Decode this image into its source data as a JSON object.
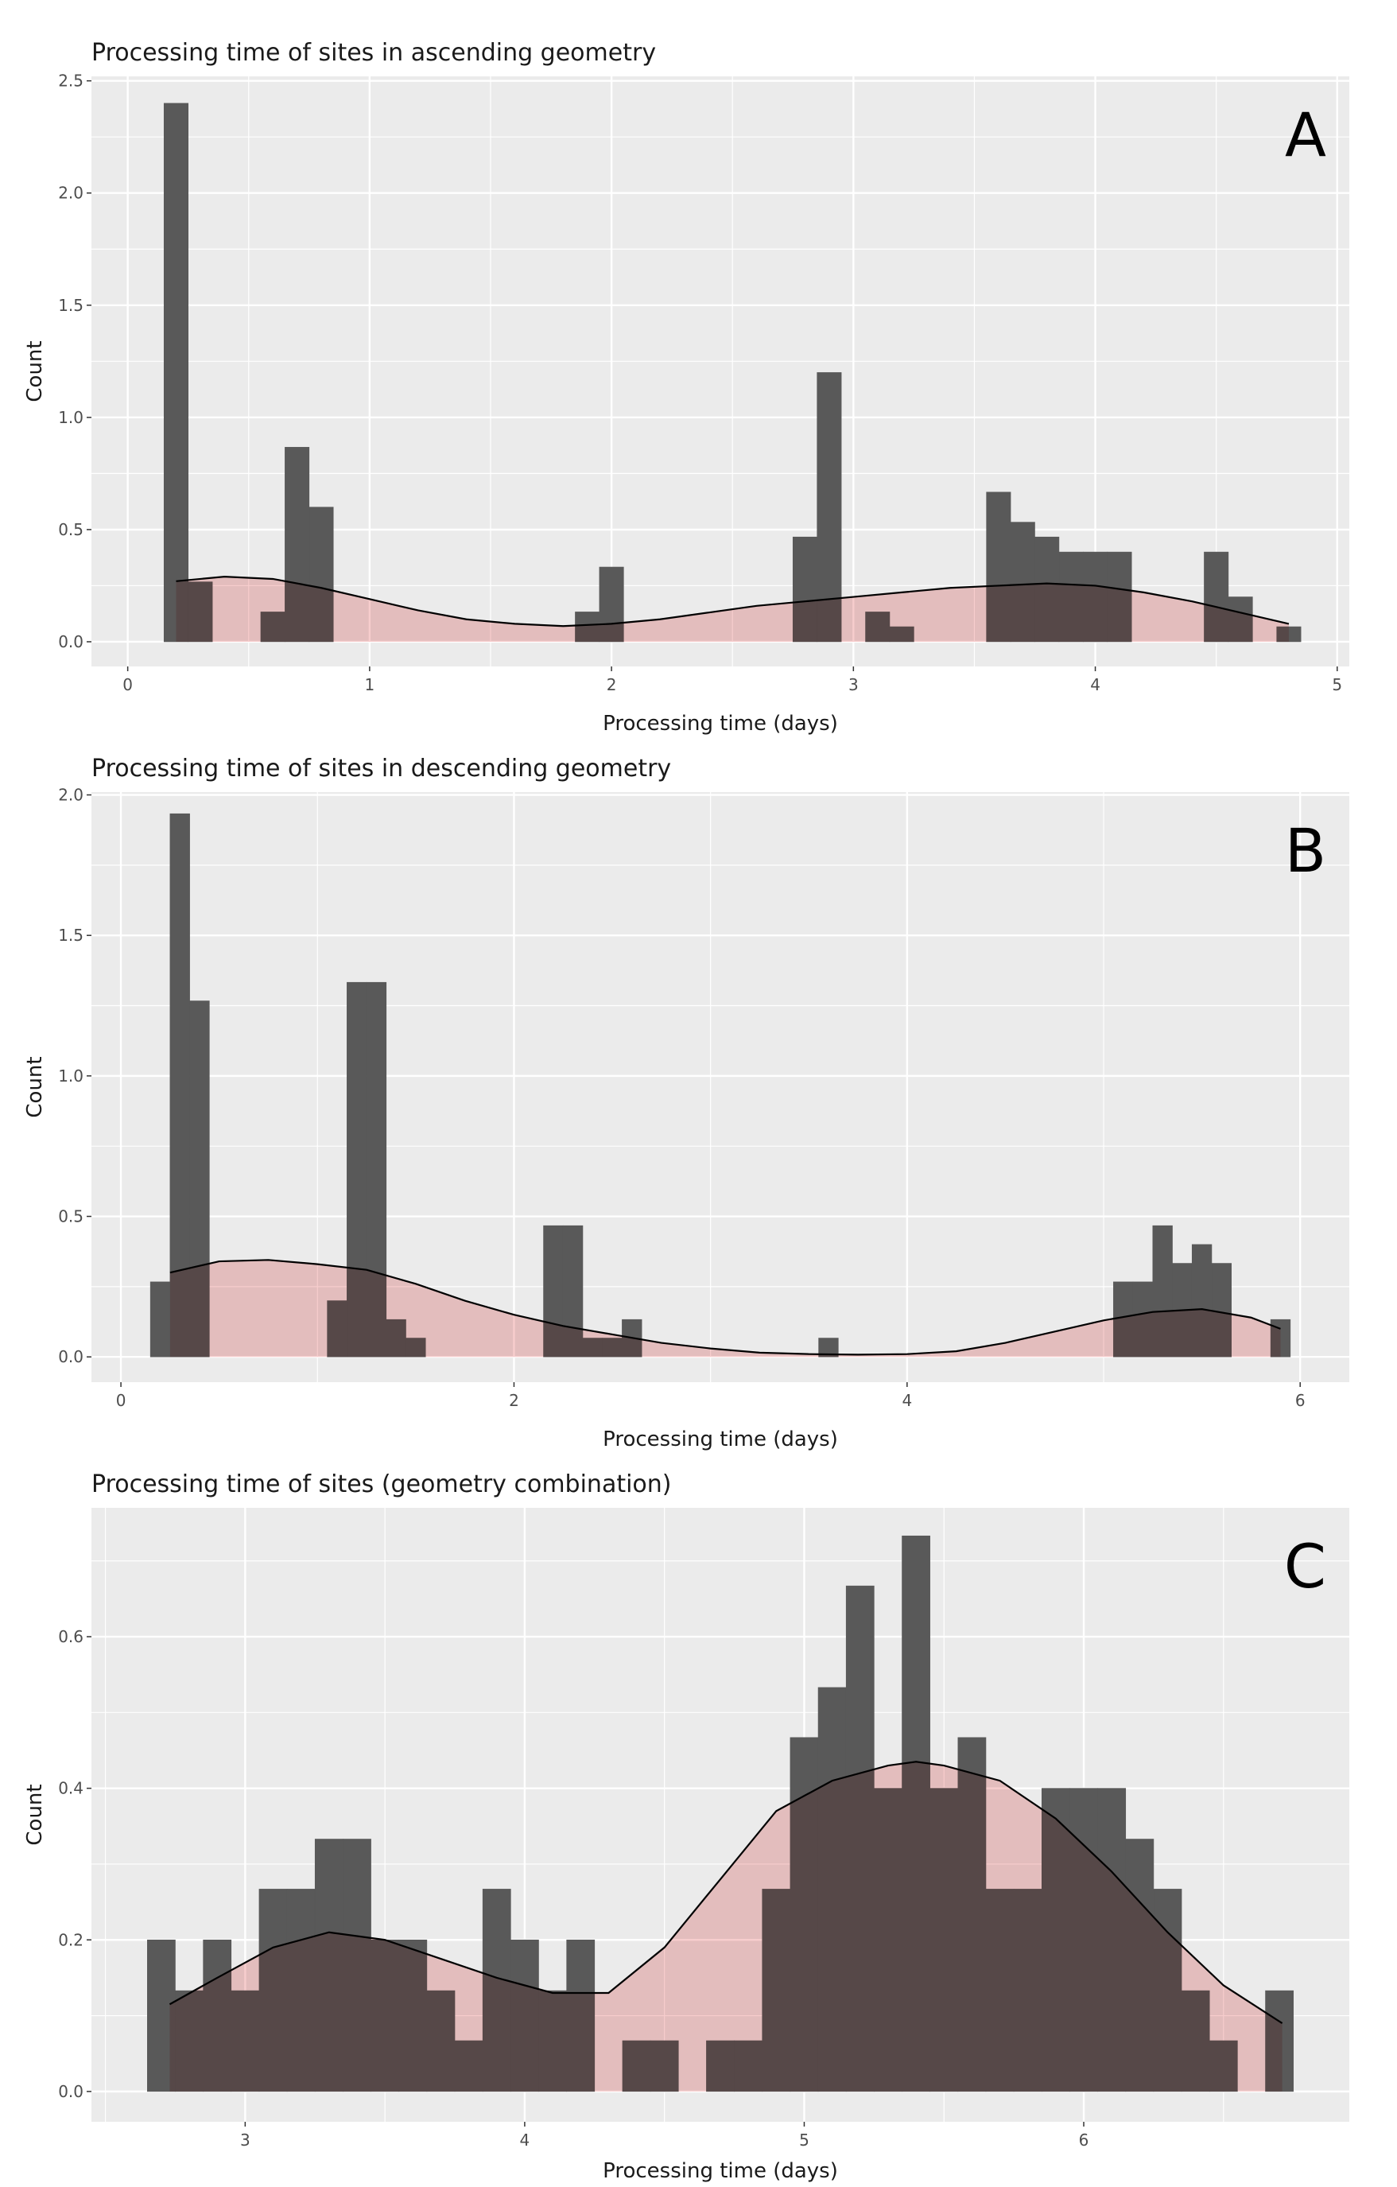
{
  "colors": {
    "panel_bg": "#ebebeb",
    "grid": "#ffffff",
    "bar": "#595959",
    "density_fill": "#f7caca",
    "density_line": "#000000"
  },
  "chart_data": [
    {
      "type": "bar",
      "panel_label": "A",
      "title": "Processing time of sites in ascending geometry",
      "xlabel": "Processing time (days)",
      "ylabel": "Count",
      "xlim": [
        -0.15,
        5.05
      ],
      "ylim": [
        -0.11,
        2.52
      ],
      "xticks": [
        0,
        1,
        2,
        3,
        4,
        5
      ],
      "xtick_labels": [
        "0",
        "1",
        "2",
        "3",
        "4",
        "5"
      ],
      "yticks": [
        0,
        0.5,
        1,
        1.5,
        2,
        2.5
      ],
      "ytick_labels": [
        "0.0",
        "0.5",
        "1.0",
        "1.5",
        "2.0",
        "2.5"
      ],
      "grid": true,
      "bin_width": 0.1,
      "bins_start": [
        0.15,
        0.25,
        0.55,
        0.65,
        0.75,
        1.85,
        1.95,
        2.75,
        2.85,
        3.05,
        3.15,
        3.55,
        3.65,
        3.75,
        3.85,
        3.95,
        4.05,
        4.45,
        4.55,
        4.75
      ],
      "values": [
        2.4,
        0.267,
        0.133,
        0.867,
        0.6,
        0.133,
        0.333,
        0.467,
        1.2,
        0.133,
        0.067,
        0.667,
        0.533,
        0.467,
        0.4,
        0.4,
        0.4,
        0.4,
        0.2,
        0.067
      ],
      "density": {
        "x": [
          0.2,
          0.4,
          0.6,
          0.8,
          1.0,
          1.2,
          1.4,
          1.6,
          1.8,
          2.0,
          2.2,
          2.4,
          2.6,
          2.8,
          3.0,
          3.2,
          3.4,
          3.6,
          3.8,
          4.0,
          4.2,
          4.4,
          4.6,
          4.8
        ],
        "y": [
          0.27,
          0.29,
          0.28,
          0.24,
          0.19,
          0.14,
          0.1,
          0.08,
          0.07,
          0.08,
          0.1,
          0.13,
          0.16,
          0.18,
          0.2,
          0.22,
          0.24,
          0.25,
          0.26,
          0.25,
          0.22,
          0.18,
          0.13,
          0.08
        ]
      }
    },
    {
      "type": "bar",
      "panel_label": "B",
      "title": "Processing time of sites in descending geometry",
      "xlabel": "Processing time (days)",
      "ylabel": "Count",
      "xlim": [
        -0.15,
        6.25
      ],
      "ylim": [
        -0.09,
        2.01
      ],
      "xticks": [
        0,
        2,
        4,
        6
      ],
      "xtick_labels": [
        "0",
        "2",
        "4",
        "6"
      ],
      "yticks": [
        0,
        0.5,
        1,
        1.5,
        2
      ],
      "ytick_labels": [
        "0.0",
        "0.5",
        "1.0",
        "1.5",
        "2.0"
      ],
      "grid": true,
      "bin_width": 0.1,
      "bins_start": [
        0.15,
        0.25,
        0.35,
        1.05,
        1.15,
        1.25,
        1.35,
        1.45,
        2.15,
        2.25,
        2.35,
        2.45,
        2.55,
        3.55,
        5.05,
        5.15,
        5.25,
        5.35,
        5.45,
        5.55,
        5.85
      ],
      "values": [
        0.267,
        1.933,
        1.267,
        0.2,
        1.333,
        1.333,
        0.133,
        0.067,
        0.467,
        0.467,
        0.067,
        0.067,
        0.133,
        0.067,
        0.267,
        0.267,
        0.467,
        0.333,
        0.4,
        0.333,
        0.133
      ],
      "density": {
        "x": [
          0.25,
          0.5,
          0.75,
          1.0,
          1.25,
          1.5,
          1.75,
          2.0,
          2.25,
          2.5,
          2.75,
          3.0,
          3.25,
          3.5,
          3.75,
          4.0,
          4.25,
          4.5,
          4.75,
          5.0,
          5.25,
          5.5,
          5.75,
          5.9
        ],
        "y": [
          0.3,
          0.34,
          0.345,
          0.33,
          0.31,
          0.26,
          0.2,
          0.15,
          0.11,
          0.08,
          0.05,
          0.03,
          0.015,
          0.01,
          0.008,
          0.01,
          0.02,
          0.05,
          0.09,
          0.13,
          0.16,
          0.17,
          0.14,
          0.1
        ]
      }
    },
    {
      "type": "bar",
      "panel_label": "C",
      "title": "Processing time of sites (geometry combination)",
      "xlabel": "Processing time (days)",
      "ylabel": "Count",
      "xlim": [
        2.45,
        6.95
      ],
      "ylim": [
        -0.04,
        0.77
      ],
      "xticks": [
        3,
        4,
        5,
        6
      ],
      "xtick_labels": [
        "3",
        "4",
        "5",
        "6"
      ],
      "yticks": [
        0,
        0.2,
        0.4,
        0.6
      ],
      "ytick_labels": [
        "0.0",
        "0.2",
        "0.4",
        "0.6"
      ],
      "grid": true,
      "bin_width": 0.1,
      "bins_start": [
        2.65,
        2.75,
        2.85,
        2.95,
        3.05,
        3.15,
        3.25,
        3.35,
        3.45,
        3.55,
        3.65,
        3.75,
        3.85,
        3.95,
        4.05,
        4.15,
        4.25,
        4.35,
        4.45,
        4.55,
        4.65,
        4.75,
        4.85,
        4.95,
        5.05,
        5.15,
        5.25,
        5.35,
        5.45,
        5.55,
        5.65,
        5.75,
        5.85,
        5.95,
        6.05,
        6.15,
        6.25,
        6.35,
        6.45,
        6.55,
        6.65
      ],
      "values": [
        0.2,
        0.133,
        0.2,
        0.133,
        0.267,
        0.267,
        0.333,
        0.333,
        0.2,
        0.2,
        0.133,
        0.067,
        0.267,
        0.2,
        0.133,
        0.2,
        0.0,
        0.067,
        0.067,
        0.0,
        0.067,
        0.067,
        0.267,
        0.467,
        0.533,
        0.667,
        0.4,
        0.733,
        0.4,
        0.467,
        0.267,
        0.267,
        0.4,
        0.4,
        0.4,
        0.333,
        0.267,
        0.133,
        0.067,
        0.0,
        0.133
      ],
      "density": {
        "x": [
          2.73,
          2.9,
          3.1,
          3.3,
          3.5,
          3.7,
          3.9,
          4.1,
          4.3,
          4.5,
          4.7,
          4.9,
          5.1,
          5.3,
          5.4,
          5.5,
          5.7,
          5.9,
          6.1,
          6.3,
          6.5,
          6.71
        ],
        "y": [
          0.115,
          0.15,
          0.19,
          0.21,
          0.2,
          0.175,
          0.15,
          0.13,
          0.13,
          0.19,
          0.28,
          0.37,
          0.41,
          0.43,
          0.435,
          0.43,
          0.41,
          0.36,
          0.29,
          0.21,
          0.14,
          0.09
        ]
      }
    }
  ]
}
